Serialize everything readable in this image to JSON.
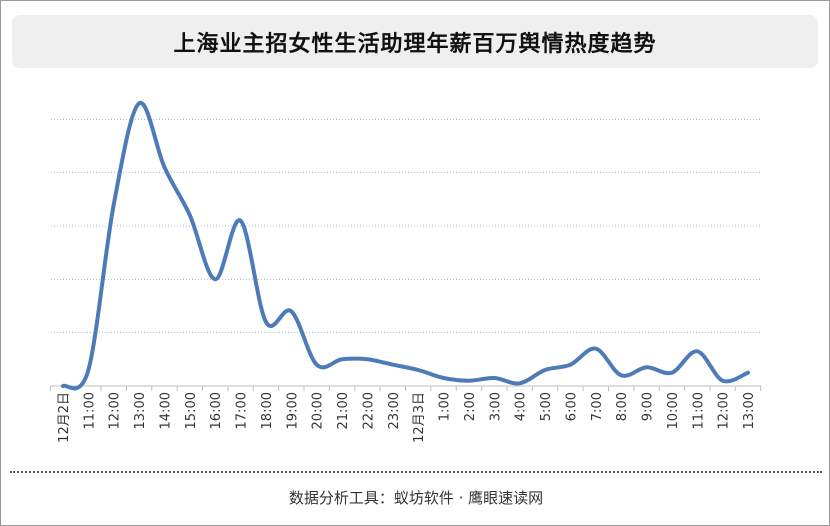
{
  "chart_data": {
    "type": "line",
    "title": "上海业主招女性生活助理年薪百万舆情热度趋势",
    "categories": [
      "12月2日",
      "11:00",
      "12:00",
      "13:00",
      "14:00",
      "15:00",
      "16:00",
      "17:00",
      "18:00",
      "19:00",
      "20:00",
      "21:00",
      "22:00",
      "23:00",
      "12月3日",
      "1:00",
      "2:00",
      "3:00",
      "4:00",
      "5:00",
      "6:00",
      "7:00",
      "8:00",
      "9:00",
      "10:00",
      "11:00",
      "12:00",
      "13:00"
    ],
    "series": [
      {
        "values": [
          0,
          3,
          34,
          53,
          41,
          32,
          20,
          31,
          12,
          14,
          4,
          5,
          5,
          4,
          3,
          1.5,
          1,
          1.5,
          0.5,
          3,
          4,
          7,
          2,
          3.5,
          2.5,
          6.5,
          1,
          2.5
        ]
      }
    ],
    "ylim": [
      0,
      60
    ],
    "y_gridlines": [
      10,
      20,
      30,
      40,
      50
    ],
    "grid": true,
    "y_tick_labels_shown": false,
    "line_color": "#4f7ab8"
  },
  "footer": {
    "text": "数据分析工具：蚁坊软件 · 鹰眼速读网"
  }
}
